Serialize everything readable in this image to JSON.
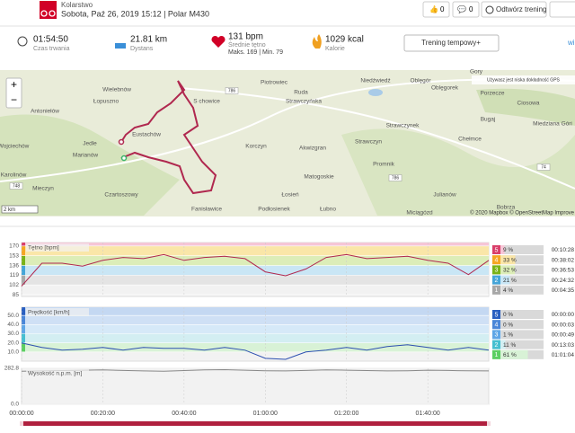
{
  "header": {
    "sport": "Kolarstwo",
    "subtitle": "Sobota, Paź 26, 2019 15:12 | Polar M430",
    "likes": "0",
    "comments": "0",
    "replay": "Odtwórz trening"
  },
  "stats": {
    "duration": "01:54:50",
    "duration_label": "Czas trwania",
    "distance": "21.81 km",
    "distance_label": "Dystans",
    "hr": "131 bpm",
    "hr_label": "Średnie tętno",
    "hr_range": "Maks. 169 | Min. 79",
    "calories": "1029 kcal",
    "calories_label": "Kalorie",
    "training_button": "Trening tempowy+",
    "more": "wi"
  },
  "map": {
    "places": [
      "Wielebnów",
      "Łopuszno",
      "S chowice",
      "Piotrowiec",
      "Ruda",
      "Strawczyńska",
      "Niedźwiedź",
      "Oblęgór",
      "Oblęgorek",
      "Porzecze",
      "Ciosowa",
      "Bugaj",
      "Miedziana Góri",
      "Antoniełów",
      "Jedle",
      "Eustachów",
      "Wojciechów",
      "Karolinów",
      "Marianów",
      "Mieczyn",
      "Czartoszowy",
      "Korczyn",
      "Akwizgran",
      "Strawczyn",
      "Strawczynek",
      "Chełmce",
      "Promnik",
      "Matogoskie",
      "Łosień",
      "Julianów",
      "Fanisławice",
      "Podłosienek",
      "Łubno",
      "Miciągózd",
      "Bobrza",
      "Gory"
    ],
    "roads": [
      "786",
      "786",
      "748",
      "74"
    ],
    "notice": "Używasz jest niska dokładność GPS",
    "scale": "2 km",
    "attribution": "© 2020 Mapbox © OpenStreetMap Improve"
  },
  "time_axis": {
    "xlim": [
      0,
      115
    ],
    "xticks": [
      {
        "value": 0,
        "label": "00:00:00"
      },
      {
        "value": 20,
        "label": "00:20:00"
      },
      {
        "value": 40,
        "label": "00:40:00"
      },
      {
        "value": 60,
        "label": "01:00:00"
      },
      {
        "value": 80,
        "label": "01:20:00"
      },
      {
        "value": 100,
        "label": "01:40:00"
      }
    ]
  },
  "charts": [
    {
      "title": "Tętno [bpm]",
      "color": "#b0284f",
      "ylim": [
        82,
        176
      ],
      "yticks": [
        170,
        153,
        136,
        119,
        102,
        85
      ],
      "x": [
        0,
        5,
        10,
        15,
        20,
        25,
        30,
        35,
        40,
        45,
        50,
        55,
        60,
        65,
        70,
        75,
        80,
        85,
        90,
        95,
        100,
        105,
        110,
        115
      ],
      "values": [
        100,
        140,
        140,
        135,
        145,
        150,
        148,
        155,
        145,
        150,
        152,
        148,
        125,
        118,
        130,
        150,
        155,
        148,
        150,
        152,
        145,
        140,
        120,
        145
      ],
      "zones": [
        {
          "zone": "5",
          "percent": 9,
          "percent_label": "9 %",
          "time": "00:10:28",
          "color": "#d93f6a",
          "band": "#f6c6d6"
        },
        {
          "zone": "4",
          "percent": 33,
          "percent_label": "33 %",
          "time": "00:38:02",
          "color": "#f5a623",
          "band": "#fae6a8"
        },
        {
          "zone": "3",
          "percent": 32,
          "percent_label": "32 %",
          "time": "00:36:53",
          "color": "#7ab317",
          "band": "#dcedb8"
        },
        {
          "zone": "2",
          "percent": 21,
          "percent_label": "21 %",
          "time": "00:24:32",
          "color": "#45a5d8",
          "band": "#c9e6f5"
        },
        {
          "zone": "1",
          "percent": 4,
          "percent_label": "4 %",
          "time": "00:04:35",
          "color": "#a8a8a8",
          "band": "#e4e4e4"
        }
      ]
    },
    {
      "title": "Prędkość [km/h]",
      "color": "#2c4fb0",
      "ylim": [
        0,
        59
      ],
      "yticks": [
        {
          "value": 50,
          "label": "50.0"
        },
        {
          "value": 40,
          "label": "40.0"
        },
        {
          "value": 30,
          "label": "30.0"
        },
        {
          "value": 20,
          "label": "20.0"
        },
        {
          "value": 10,
          "label": "10.0"
        }
      ],
      "x": [
        0,
        5,
        10,
        15,
        20,
        25,
        30,
        35,
        40,
        45,
        50,
        55,
        60,
        65,
        70,
        75,
        80,
        85,
        90,
        95,
        100,
        105,
        110,
        115
      ],
      "values": [
        20,
        15,
        12,
        13,
        15,
        12,
        15,
        14,
        14,
        12,
        15,
        12,
        3,
        2,
        10,
        12,
        15,
        12,
        16,
        18,
        15,
        12,
        15,
        12
      ],
      "zones": [
        {
          "zone": "5",
          "percent": 0,
          "percent_label": "0 %",
          "time": "00:00:00",
          "color": "#2a5fc0",
          "band": "#c4d8f2"
        },
        {
          "zone": "4",
          "percent": 0,
          "percent_label": "0 %",
          "time": "00:00:03",
          "color": "#4a86d8",
          "band": "#cfe0f5"
        },
        {
          "zone": "3",
          "percent": 1,
          "percent_label": "1 %",
          "time": "00:00:49",
          "color": "#5fa6e6",
          "band": "#d6e9f8"
        },
        {
          "zone": "2",
          "percent": 11,
          "percent_label": "11 %",
          "time": "00:13:03",
          "color": "#45bfd0",
          "band": "#d3eef2"
        },
        {
          "zone": "1",
          "percent": 61,
          "percent_label": "61 %",
          "time": "01:01:04",
          "color": "#5ccf63",
          "band": "#d8f2d6"
        }
      ]
    },
    {
      "title": "Wysokość n.p.m. [m]",
      "color": "#888888",
      "ylim": [
        0,
        282.8
      ],
      "yticks": [
        {
          "value": 282.8,
          "label": "282.8"
        },
        {
          "value": 0,
          "label": "0.0"
        }
      ],
      "x": [
        0,
        5,
        10,
        15,
        20,
        25,
        30,
        35,
        40,
        45,
        50,
        55,
        60,
        65,
        70,
        75,
        80,
        85,
        90,
        95,
        100,
        105,
        110,
        115
      ],
      "values": [
        260,
        262,
        265,
        268,
        270,
        266,
        262,
        260,
        265,
        270,
        272,
        268,
        264,
        262,
        266,
        270,
        268,
        265,
        262,
        264,
        268,
        266,
        263,
        262
      ]
    }
  ]
}
